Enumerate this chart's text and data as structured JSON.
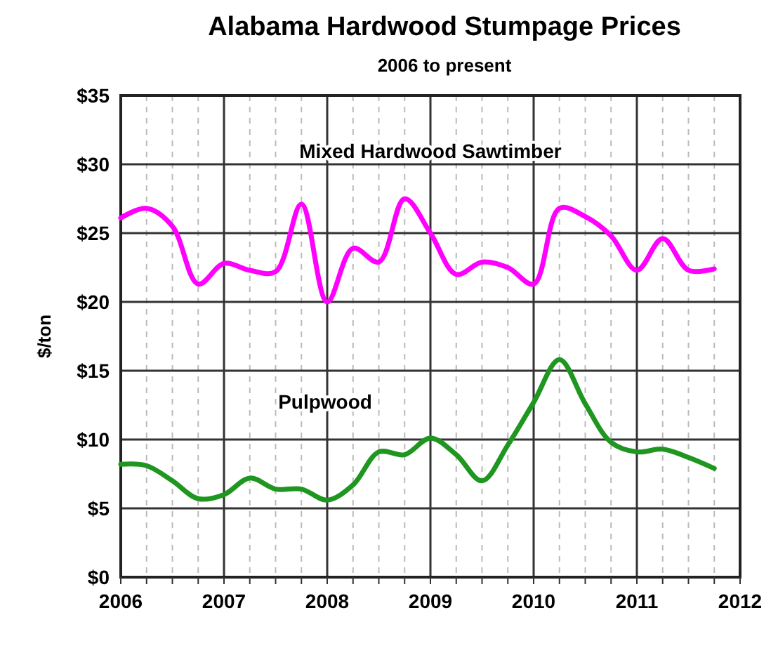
{
  "chart_data": {
    "type": "line",
    "title": "Alabama Hardwood Stumpage Prices",
    "subtitle": "2006 to present",
    "ylabel": "$/ton",
    "x": [
      2006,
      2006.25,
      2006.5,
      2006.75,
      2007,
      2007.25,
      2007.5,
      2007.75,
      2008,
      2008.25,
      2008.5,
      2008.75,
      2009,
      2009.25,
      2009.5,
      2009.75,
      2010,
      2010.25,
      2010.5,
      2010.75,
      2011,
      2011.25,
      2011.5,
      2011.75
    ],
    "series": [
      {
        "name": "Mixed Hardwood Sawtimber",
        "color": "#ff00ff",
        "values": [
          26.1,
          26.8,
          25.5,
          21.3,
          22.8,
          22.3,
          22.2,
          27.1,
          20.0,
          23.9,
          22.9,
          27.5,
          25.0,
          22.0,
          22.9,
          22.5,
          21.3,
          26.8,
          26.2,
          24.8,
          22.3,
          24.6,
          22.3,
          22.4
        ]
      },
      {
        "name": "Pulpwood",
        "color": "#1f961f",
        "values": [
          8.2,
          8.1,
          7.0,
          5.7,
          6.0,
          7.2,
          6.4,
          6.4,
          5.6,
          6.7,
          9.1,
          8.9,
          10.1,
          8.9,
          7.0,
          9.6,
          12.7,
          15.8,
          12.6,
          9.8,
          9.1,
          9.3,
          8.7,
          7.9
        ]
      }
    ],
    "xlim": [
      2006,
      2012
    ],
    "xticks": [
      2006,
      {
        "value": 2006.25,
        "label": null
      },
      {
        "value": 2006.5,
        "label": null
      },
      {
        "value": 2006.75,
        "label": null
      },
      2007,
      {
        "value": 2007.25,
        "label": null
      },
      {
        "value": 2007.5,
        "label": null
      },
      {
        "value": 2007.75,
        "label": null
      },
      2008,
      {
        "value": 2008.25,
        "label": null
      },
      {
        "value": 2008.5,
        "label": null
      },
      {
        "value": 2008.75,
        "label": null
      },
      2009,
      {
        "value": 2009.25,
        "label": null
      },
      {
        "value": 2009.5,
        "label": null
      },
      {
        "value": 2009.75,
        "label": null
      },
      2010,
      {
        "value": 2010.25,
        "label": null
      },
      {
        "value": 2010.5,
        "label": null
      },
      {
        "value": 2010.75,
        "label": null
      },
      2011,
      {
        "value": 2011.25,
        "label": null
      },
      {
        "value": 2011.5,
        "label": null
      },
      {
        "value": 2011.75,
        "label": null
      },
      2012
    ],
    "ylim": [
      0,
      35
    ],
    "yticks": [
      {
        "value": 0,
        "label": "$0"
      },
      {
        "value": 5,
        "label": "$5"
      },
      {
        "value": 10,
        "label": "$10"
      },
      {
        "value": 15,
        "label": "$15"
      },
      {
        "value": 20,
        "label": "$20"
      },
      {
        "value": 25,
        "label": "$25"
      },
      {
        "value": 30,
        "label": "$30"
      },
      {
        "value": 35,
        "label": "$35"
      }
    ],
    "grid": true,
    "marker": "none",
    "line_style": "solid"
  }
}
